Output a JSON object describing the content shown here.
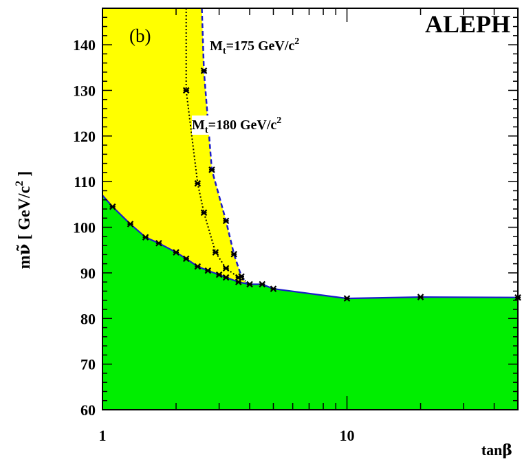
{
  "chart_data": {
    "type": "area",
    "title": "ALEPH",
    "panel_label": "(b)",
    "xlabel": "tanβ",
    "xlabel_parts": {
      "main": "tan",
      "greek": "β"
    },
    "ylabel": "mν̃ [ GeV/c²]",
    "ylabel_parts": {
      "m": "m",
      "nu": "ν̃",
      "unit": "[ GeV/c",
      "sup": "2",
      "close": "]"
    },
    "x_scale": "log",
    "xlim": [
      1,
      50
    ],
    "ylim": [
      60,
      148
    ],
    "x_tick_labels": [
      {
        "value": 1,
        "label": "1"
      },
      {
        "value": 10,
        "label": "10"
      }
    ],
    "y_ticks": [
      60,
      70,
      80,
      90,
      100,
      110,
      120,
      130,
      140
    ],
    "colors": {
      "excluded_green": "#00ee00",
      "excluded_yellow": "#ffff00",
      "boundary_line": "#1a1acc",
      "marker": "#000000"
    },
    "series": [
      {
        "name": "",
        "region": "green",
        "style": "solid",
        "x": [
          1.0,
          1.1,
          1.3,
          1.5,
          1.7,
          2.0,
          2.2,
          2.45,
          2.7,
          3.0,
          3.2,
          3.6,
          4.0,
          4.5,
          5.0,
          10.0,
          20.0,
          50.0
        ],
        "y": [
          107,
          104.5,
          100.7,
          97.8,
          96.5,
          94.5,
          93.1,
          91.4,
          90.5,
          89.6,
          89.0,
          88.0,
          87.5,
          87.5,
          86.5,
          84.4,
          84.7,
          84.6
        ]
      },
      {
        "name": "M_t=180 GeV/c²",
        "label_parts": {
          "M": "M",
          "sub": "t",
          "rest": "=180 GeV/c",
          "sup": "2"
        },
        "style": "dotted",
        "x": [
          2.2,
          2.2,
          2.45,
          2.6,
          2.9,
          3.2,
          3.6,
          3.85
        ],
        "y": [
          148,
          130,
          109.6,
          103.2,
          94.5,
          91.0,
          89.0,
          88.2
        ],
        "markers_x": [
          2.2,
          2.45,
          2.6,
          2.9,
          3.2,
          3.6
        ],
        "markers_y": [
          130,
          109.6,
          103.2,
          94.5,
          91.0,
          89.0
        ]
      },
      {
        "name": "M_t=175 GeV/c²",
        "label_parts": {
          "M": "M",
          "sub": "t",
          "rest": "=175 GeV/c",
          "sup": "2"
        },
        "style": "dashed",
        "x": [
          2.55,
          2.6,
          2.8,
          3.2,
          3.45,
          3.7,
          3.9
        ],
        "y": [
          148,
          134.3,
          112.6,
          101.4,
          94.1,
          89.2,
          87.5
        ],
        "markers_x": [
          2.6,
          2.8,
          3.2,
          3.45,
          3.7
        ],
        "markers_y": [
          134.3,
          112.6,
          101.4,
          94.1,
          89.2
        ]
      }
    ],
    "grid": false,
    "legend": "none"
  }
}
